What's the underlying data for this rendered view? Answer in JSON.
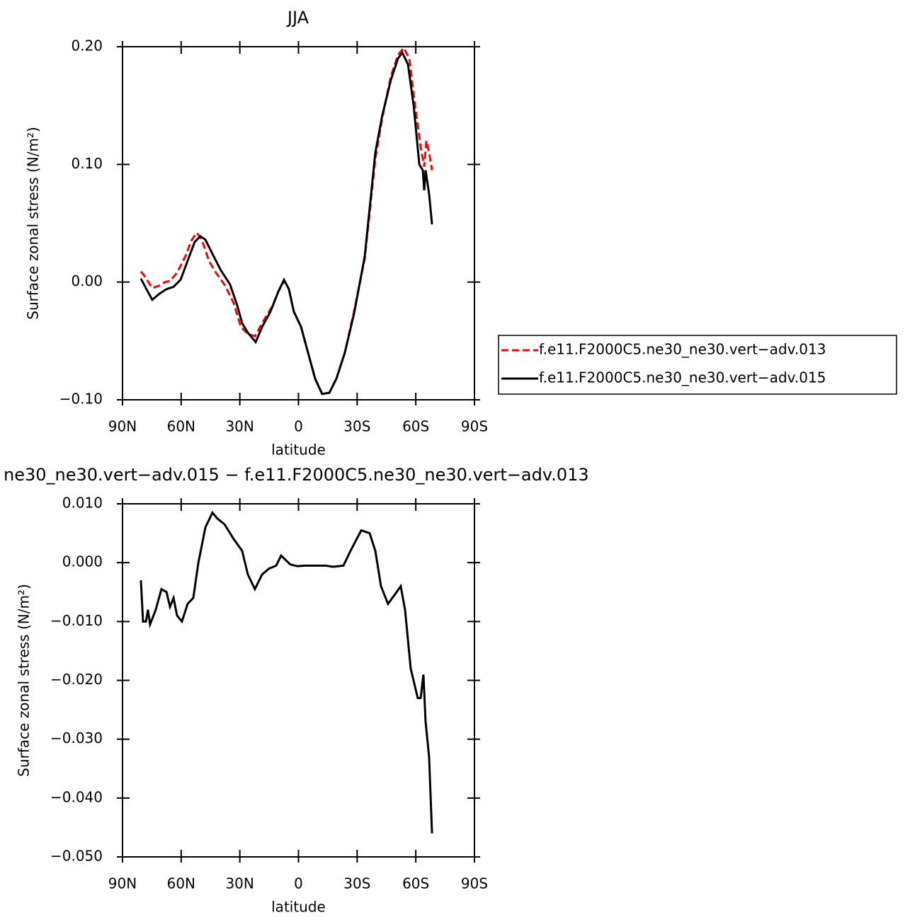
{
  "chart_data": [
    {
      "type": "line",
      "title": "JJA",
      "xlabel": "latitude",
      "ylabel": "Surface zonal stress (N/m²)",
      "xlim": [
        90,
        -90
      ],
      "xticks": [
        {
          "value": 90,
          "label": "90N"
        },
        {
          "value": 60,
          "label": "60N"
        },
        {
          "value": 30,
          "label": "30N"
        },
        0,
        {
          "value": -30,
          "label": "30S"
        },
        {
          "value": -60,
          "label": "60S"
        },
        {
          "value": -90,
          "label": "90S"
        }
      ],
      "ylim": [
        -0.1,
        0.2
      ],
      "yticks": [
        {
          "value": 0.2,
          "label": "0.20"
        },
        {
          "value": 0.1,
          "label": "0.10"
        },
        {
          "value": 0,
          "label": "0.00"
        },
        {
          "value": -0.1,
          "label": "−0.10"
        }
      ],
      "legend": "right",
      "series": [
        {
          "name": "f.e11.F2000C5.ne30_ne30.vert−adv.013",
          "color": "#ff0000",
          "dash": "dashed",
          "x": [
            80.6,
            79.1,
            74.8,
            71.2,
            68.3,
            65.7,
            62.1,
            57.8,
            54.9,
            52.0,
            49.4,
            45.8,
            42.2,
            37.5,
            33.1,
            29.5,
            25.9,
            22.3,
            17.9,
            13.2,
            10.3,
            7.4,
            4.9,
            2.4,
            -1.3,
            -4.9,
            -8.5,
            -12.1,
            -15.8,
            -19.4,
            -23.7,
            -28.4,
            -33.9,
            -39.3,
            -42.9,
            -47.3,
            -50.9,
            -53.8,
            -56.7,
            -59.6,
            -62.5,
            -64.3,
            -65.4,
            -66.8,
            -68.3
          ],
          "values": [
            0.009,
            0.006,
            -0.005,
            -0.003,
            0.0,
            0.001,
            0.008,
            0.022,
            0.035,
            0.042,
            0.036,
            0.018,
            0.008,
            -0.003,
            -0.018,
            -0.038,
            -0.044,
            -0.046,
            -0.033,
            -0.02,
            -0.008,
            0.001,
            -0.006,
            -0.025,
            -0.038,
            -0.06,
            -0.082,
            -0.095,
            -0.094,
            -0.082,
            -0.06,
            -0.025,
            0.02,
            0.105,
            0.14,
            0.175,
            0.193,
            0.199,
            0.19,
            0.15,
            0.115,
            0.098,
            0.12,
            0.11,
            0.095
          ]
        },
        {
          "name": "f.e11.F2000C5.ne30_ne30.vert−adv.015",
          "color": "#000000",
          "dash": "solid",
          "x": [
            80.6,
            78.4,
            74.8,
            71.2,
            67.5,
            63.9,
            60.3,
            56.7,
            53.1,
            50.2,
            47.6,
            44.0,
            39.7,
            35.0,
            31.3,
            28.8,
            25.9,
            21.9,
            18.6,
            14.3,
            10.3,
            7.4,
            4.9,
            2.4,
            -1.3,
            -4.9,
            -8.5,
            -12.1,
            -15.8,
            -19.4,
            -23.7,
            -28.4,
            -33.9,
            -39.3,
            -42.9,
            -47.3,
            -50.9,
            -53.1,
            -56.0,
            -58.9,
            -61.8,
            -63.6,
            -64.3,
            -65.0,
            -66.8,
            -68.3
          ],
          "values": [
            0.003,
            -0.004,
            -0.015,
            -0.01,
            -0.006,
            -0.004,
            0.002,
            0.018,
            0.034,
            0.039,
            0.036,
            0.024,
            0.01,
            -0.002,
            -0.02,
            -0.035,
            -0.043,
            -0.051,
            -0.038,
            -0.025,
            -0.008,
            0.002,
            -0.006,
            -0.025,
            -0.038,
            -0.06,
            -0.082,
            -0.095,
            -0.094,
            -0.082,
            -0.06,
            -0.027,
            0.022,
            0.11,
            0.142,
            0.172,
            0.19,
            0.195,
            0.185,
            0.15,
            0.1,
            0.095,
            0.078,
            0.095,
            0.075,
            0.049
          ]
        }
      ]
    },
    {
      "type": "line",
      "title": "ne30_ne30.vert−adv.015 − f.e11.F2000C5.ne30_ne30.vert−adv.013",
      "xlabel": "latitude",
      "ylabel": "Surface zonal stress (N/m²)",
      "xlim": [
        90,
        -90
      ],
      "xticks": [
        {
          "value": 90,
          "label": "90N"
        },
        {
          "value": 60,
          "label": "60N"
        },
        {
          "value": 30,
          "label": "30N"
        },
        0,
        {
          "value": -30,
          "label": "30S"
        },
        {
          "value": -60,
          "label": "60S"
        },
        {
          "value": -90,
          "label": "90S"
        }
      ],
      "ylim": [
        -0.05,
        0.01
      ],
      "yticks": [
        {
          "value": 0.01,
          "label": "0.010"
        },
        {
          "value": 0,
          "label": "0.000"
        },
        {
          "value": -0.01,
          "label": "−0.010"
        },
        {
          "value": -0.02,
          "label": "−0.020"
        },
        {
          "value": -0.03,
          "label": "−0.030"
        },
        {
          "value": -0.04,
          "label": "−0.040"
        },
        {
          "value": -0.05,
          "label": "−0.050"
        }
      ],
      "series": [
        {
          "color": "#000000",
          "dash": "solid",
          "x": [
            80.6,
            79.5,
            78.0,
            77.0,
            75.9,
            73.0,
            70.1,
            67.5,
            65.7,
            63.9,
            62.1,
            59.6,
            56.7,
            53.8,
            51.2,
            47.6,
            44.0,
            41.5,
            37.8,
            33.1,
            28.8,
            25.9,
            22.3,
            18.6,
            15.0,
            11.4,
            8.9,
            4.2,
            0.5,
            -3.1,
            -6.7,
            -10.3,
            -13.9,
            -17.6,
            -23.0,
            -26.6,
            -32.1,
            -36.4,
            -39.3,
            -42.2,
            -45.8,
            -50.2,
            -52.3,
            -54.5,
            -57.4,
            -61.0,
            -62.5,
            -63.9,
            -65.0,
            -66.8,
            -68.3
          ],
          "values": [
            -0.003,
            -0.01,
            -0.01,
            -0.008,
            -0.0105,
            -0.008,
            -0.0045,
            -0.005,
            -0.0075,
            -0.006,
            -0.009,
            -0.01,
            -0.007,
            -0.006,
            0.0,
            0.006,
            0.0085,
            0.0075,
            0.0065,
            0.004,
            0.002,
            -0.002,
            -0.0045,
            -0.002,
            -0.001,
            -0.0005,
            0.0012,
            -0.0003,
            -0.0006,
            -0.0005,
            -0.0005,
            -0.0005,
            -0.0005,
            -0.0007,
            -0.0005,
            0.002,
            0.0055,
            0.005,
            0.002,
            -0.004,
            -0.007,
            -0.005,
            -0.004,
            -0.008,
            -0.018,
            -0.023,
            -0.023,
            -0.019,
            -0.027,
            -0.033,
            -0.046
          ]
        }
      ]
    }
  ]
}
